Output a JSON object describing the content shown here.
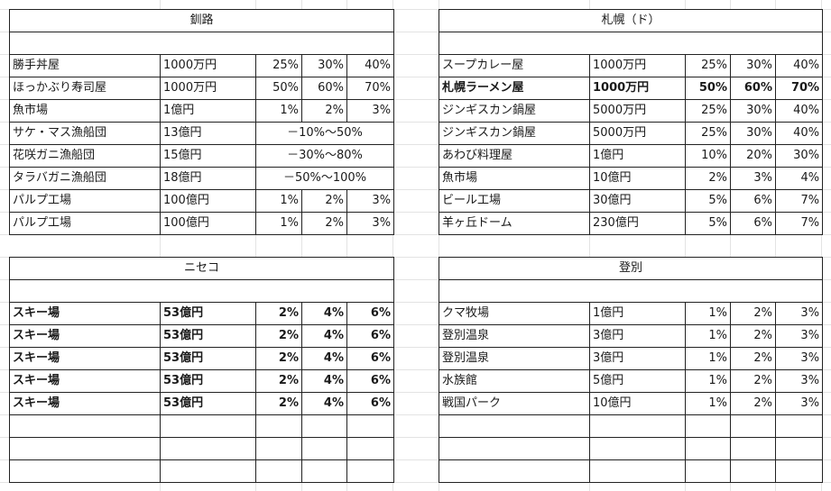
{
  "kushiro": {
    "title": "釧路",
    "rows": [
      {
        "name": "勝手丼屋",
        "price": "1000万円",
        "r1": "25%",
        "r2": "30%",
        "r3": "40%"
      },
      {
        "name": "ほっかぶり寿司屋",
        "price": "1000万円",
        "r1": "50%",
        "r2": "60%",
        "r3": "70%"
      },
      {
        "name": "魚市場",
        "price": "1億円",
        "r1": "1%",
        "r2": "2%",
        "r3": "3%"
      },
      {
        "name": "サケ・マス漁船団",
        "price": "13億円",
        "range": "－10%～50%"
      },
      {
        "name": "花咲ガニ漁船団",
        "price": "15億円",
        "range": "－30%～80%"
      },
      {
        "name": "タラバガニ漁船団",
        "price": "18億円",
        "range": "－50%～100%"
      },
      {
        "name": "パルプ工場",
        "price": "100億円",
        "r1": "1%",
        "r2": "2%",
        "r3": "3%"
      },
      {
        "name": "パルプ工場",
        "price": "100億円",
        "r1": "1%",
        "r2": "2%",
        "r3": "3%"
      }
    ]
  },
  "sapporo": {
    "title": "札幌（ド）",
    "rows": [
      {
        "name": "スープカレー屋",
        "price": "1000万円",
        "r1": "25%",
        "r2": "30%",
        "r3": "40%"
      },
      {
        "name": "札幌ラーメン屋",
        "price": "1000万円",
        "r1": "50%",
        "r2": "60%",
        "r3": "70%"
      },
      {
        "name": "ジンギスカン鍋屋",
        "price": "5000万円",
        "r1": "25%",
        "r2": "30%",
        "r3": "40%"
      },
      {
        "name": "ジンギスカン鍋屋",
        "price": "5000万円",
        "r1": "25%",
        "r2": "30%",
        "r3": "40%"
      },
      {
        "name": "あわび料理屋",
        "price": "1億円",
        "r1": "10%",
        "r2": "20%",
        "r3": "30%"
      },
      {
        "name": "魚市場",
        "price": "10億円",
        "r1": "2%",
        "r2": "3%",
        "r3": "4%"
      },
      {
        "name": "ビール工場",
        "price": "30億円",
        "r1": "5%",
        "r2": "6%",
        "r3": "7%"
      },
      {
        "name": "羊ヶ丘ドーム",
        "price": "230億円",
        "r1": "5%",
        "r2": "6%",
        "r3": "7%"
      }
    ]
  },
  "niseko": {
    "title": "ニセコ",
    "rows": [
      {
        "name": "スキー場",
        "price": "53億円",
        "r1": "2%",
        "r2": "4%",
        "r3": "6%"
      },
      {
        "name": "スキー場",
        "price": "53億円",
        "r1": "2%",
        "r2": "4%",
        "r3": "6%"
      },
      {
        "name": "スキー場",
        "price": "53億円",
        "r1": "2%",
        "r2": "4%",
        "r3": "6%"
      },
      {
        "name": "スキー場",
        "price": "53億円",
        "r1": "2%",
        "r2": "4%",
        "r3": "6%"
      },
      {
        "name": "スキー場",
        "price": "53億円",
        "r1": "2%",
        "r2": "4%",
        "r3": "6%"
      }
    ]
  },
  "noboribetsu": {
    "title": "登別",
    "rows": [
      {
        "name": "クマ牧場",
        "price": "1億円",
        "r1": "1%",
        "r2": "2%",
        "r3": "3%"
      },
      {
        "name": "登別温泉",
        "price": "3億円",
        "r1": "1%",
        "r2": "2%",
        "r3": "3%"
      },
      {
        "name": "登別温泉",
        "price": "3億円",
        "r1": "1%",
        "r2": "2%",
        "r3": "3%"
      },
      {
        "name": "水族館",
        "price": "5億円",
        "r1": "1%",
        "r2": "2%",
        "r3": "3%"
      },
      {
        "name": "戦国パーク",
        "price": "10億円",
        "r1": "1%",
        "r2": "2%",
        "r3": "3%"
      }
    ]
  }
}
